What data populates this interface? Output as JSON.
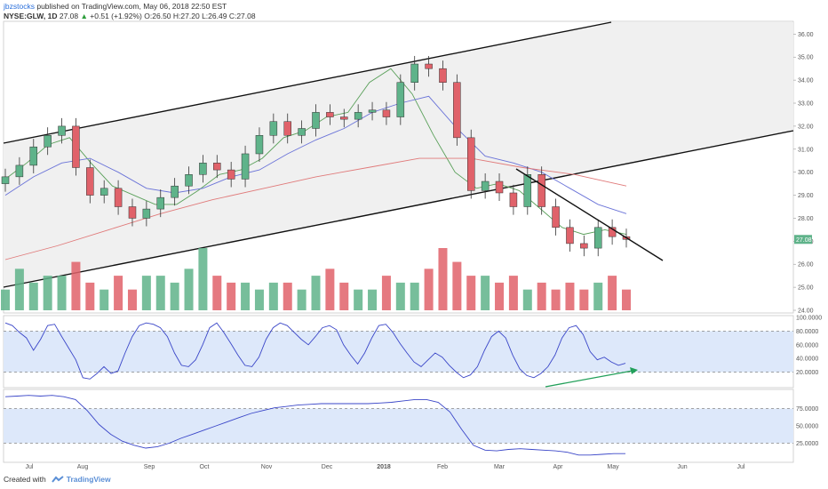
{
  "header": {
    "author": "jbzstocks",
    "published_text": "published on TradingView.com, May 06, 2018 22:50 EST",
    "symbol": "NYSE:GLW, 1D",
    "last": "27.08",
    "change": "+0.51 (+1.92%)",
    "open": "O:26.50",
    "high": "H:27.20",
    "low": "L:26.49",
    "close": "C:27.08"
  },
  "footer": {
    "created_with": "Created with",
    "brand": "TradingView"
  },
  "colors": {
    "up": "#5fb38a",
    "down": "#e0626a",
    "channel_fill": "#f0f0f0",
    "band_fill": "#dde8fa",
    "osc_line": "#3a46c8",
    "ma_fast": "#5aa05a",
    "ma_mid": "#6a73d8",
    "ma_slow": "#e07a7a",
    "arrow": "#22a05a"
  },
  "chart_data": [
    {
      "type": "candlestick",
      "title": "",
      "ylabel": "",
      "ylim": [
        24.0,
        36.4
      ],
      "y_ticks": [
        "36.00",
        "35.00",
        "34.00",
        "33.00",
        "32.00",
        "31.00",
        "30.00",
        "29.00",
        "28.00",
        "27.00",
        "26.00",
        "25.00",
        "24.00"
      ],
      "x_ticks": [
        "Jul",
        "Aug",
        "Sep",
        "Oct",
        "Nov",
        "Dec",
        "2018",
        "Feb",
        "Mar",
        "Apr",
        "May",
        "Jun",
        "Jul"
      ],
      "last_price_label": "27.08",
      "close_path": [
        [
          "Jul",
          29.8
        ],
        [
          "Jul",
          30.3
        ],
        [
          "Jul",
          31.1
        ],
        [
          "Jul",
          31.6
        ],
        [
          "Jul",
          32.0
        ],
        [
          "Aug",
          30.2
        ],
        [
          "Aug",
          29.0
        ],
        [
          "Aug",
          29.3
        ],
        [
          "Aug",
          28.5
        ],
        [
          "Aug",
          28.0
        ],
        [
          "Sep",
          28.4
        ],
        [
          "Sep",
          28.9
        ],
        [
          "Sep",
          29.4
        ],
        [
          "Sep",
          29.9
        ],
        [
          "Oct",
          30.4
        ],
        [
          "Oct",
          30.1
        ],
        [
          "Oct",
          29.7
        ],
        [
          "Oct",
          30.8
        ],
        [
          "Nov",
          31.6
        ],
        [
          "Nov",
          32.2
        ],
        [
          "Nov",
          31.6
        ],
        [
          "Nov",
          31.9
        ],
        [
          "Nov",
          32.6
        ],
        [
          "Dec",
          32.4
        ],
        [
          "Dec",
          32.3
        ],
        [
          "Dec",
          32.6
        ],
        [
          "Dec",
          32.7
        ],
        [
          "2018",
          32.4
        ],
        [
          "2018",
          33.9
        ],
        [
          "2018",
          34.7
        ],
        [
          "2018",
          34.5
        ],
        [
          "2018",
          33.9
        ],
        [
          "Feb",
          31.5
        ],
        [
          "Feb",
          29.2
        ],
        [
          "Feb",
          29.6
        ],
        [
          "Feb",
          29.1
        ],
        [
          "Mar",
          28.5
        ],
        [
          "Mar",
          29.9
        ],
        [
          "Mar",
          28.5
        ],
        [
          "Mar",
          27.6
        ],
        [
          "Apr",
          26.9
        ],
        [
          "Apr",
          26.7
        ],
        [
          "Apr",
          27.6
        ],
        [
          "Apr",
          27.2
        ],
        [
          "May",
          27.08
        ]
      ],
      "moving_averages": [
        {
          "name": "",
          "color": "#5aa05a",
          "values": [
            29.7,
            30.4,
            31.2,
            31.5,
            30.4,
            29.4,
            29.0,
            28.6,
            28.6,
            29.2,
            29.9,
            30.1,
            30.6,
            31.5,
            31.8,
            32.4,
            32.6,
            33.9,
            34.5,
            33.4,
            31.6,
            30.0,
            29.3,
            29.5,
            29.2,
            28.4,
            27.6,
            27.3,
            27.5,
            27.3
          ]
        },
        {
          "name": "",
          "color": "#6a73d8",
          "values": [
            29.0,
            29.8,
            30.4,
            30.6,
            30.0,
            29.3,
            29.1,
            29.3,
            29.8,
            30.1,
            30.8,
            31.4,
            31.9,
            32.6,
            33.0,
            33.3,
            31.9,
            30.7,
            30.4,
            30.0,
            29.3,
            28.6,
            28.2
          ]
        },
        {
          "name": "",
          "color": "#e07a7a",
          "values": [
            26.2,
            26.8,
            27.5,
            28.2,
            28.8,
            29.3,
            29.8,
            30.2,
            30.6,
            30.6,
            30.2,
            29.9,
            29.4
          ]
        }
      ],
      "volume": [
        3,
        6,
        4,
        5,
        5,
        7,
        4,
        3,
        5,
        3,
        5,
        5,
        4,
        6,
        9,
        5,
        4,
        4,
        3,
        4,
        4,
        3,
        5,
        6,
        4,
        3,
        3,
        5,
        4,
        4,
        6,
        9,
        7,
        5,
        5,
        4,
        5,
        3,
        4,
        3,
        4,
        3,
        4,
        5,
        3
      ],
      "trendlines": [
        "upper channel line",
        "lower channel line",
        "descending resistance line"
      ]
    },
    {
      "type": "line",
      "title": "",
      "ylim": [
        0,
        100
      ],
      "y_ticks": [
        "100.0000",
        "80.0000",
        "60.0000",
        "40.0000",
        "20.0000"
      ],
      "band": [
        20,
        80
      ],
      "values": [
        92,
        88,
        78,
        70,
        52,
        68,
        88,
        90,
        72,
        55,
        38,
        12,
        10,
        18,
        28,
        18,
        22,
        48,
        72,
        88,
        92,
        90,
        85,
        72,
        48,
        30,
        28,
        38,
        60,
        85,
        92,
        78,
        62,
        45,
        30,
        28,
        42,
        68,
        85,
        92,
        88,
        78,
        68,
        60,
        72,
        85,
        88,
        82,
        60,
        45,
        32,
        48,
        70,
        88,
        90,
        78,
        62,
        48,
        35,
        28,
        38,
        48,
        42,
        30,
        20,
        12,
        16,
        28,
        52,
        72,
        80,
        70,
        45,
        25,
        15,
        12,
        18,
        28,
        45,
        70,
        85,
        88,
        75,
        50,
        38,
        42,
        35,
        30,
        33
      ]
    },
    {
      "type": "line",
      "title": "",
      "ylim": [
        0,
        100
      ],
      "y_ticks": [
        "75.0000",
        "50.0000",
        "25.0000"
      ],
      "band": [
        25,
        75
      ],
      "values": [
        92,
        93,
        94,
        93,
        94,
        92,
        88,
        72,
        52,
        38,
        28,
        22,
        18,
        20,
        25,
        32,
        38,
        44,
        50,
        56,
        62,
        68,
        72,
        76,
        78,
        80,
        81,
        82,
        82,
        82,
        82,
        82,
        83,
        84,
        86,
        88,
        88,
        84,
        70,
        45,
        22,
        15,
        14,
        16,
        17,
        16,
        15,
        14,
        12,
        8,
        8,
        9,
        10,
        10
      ]
    }
  ]
}
